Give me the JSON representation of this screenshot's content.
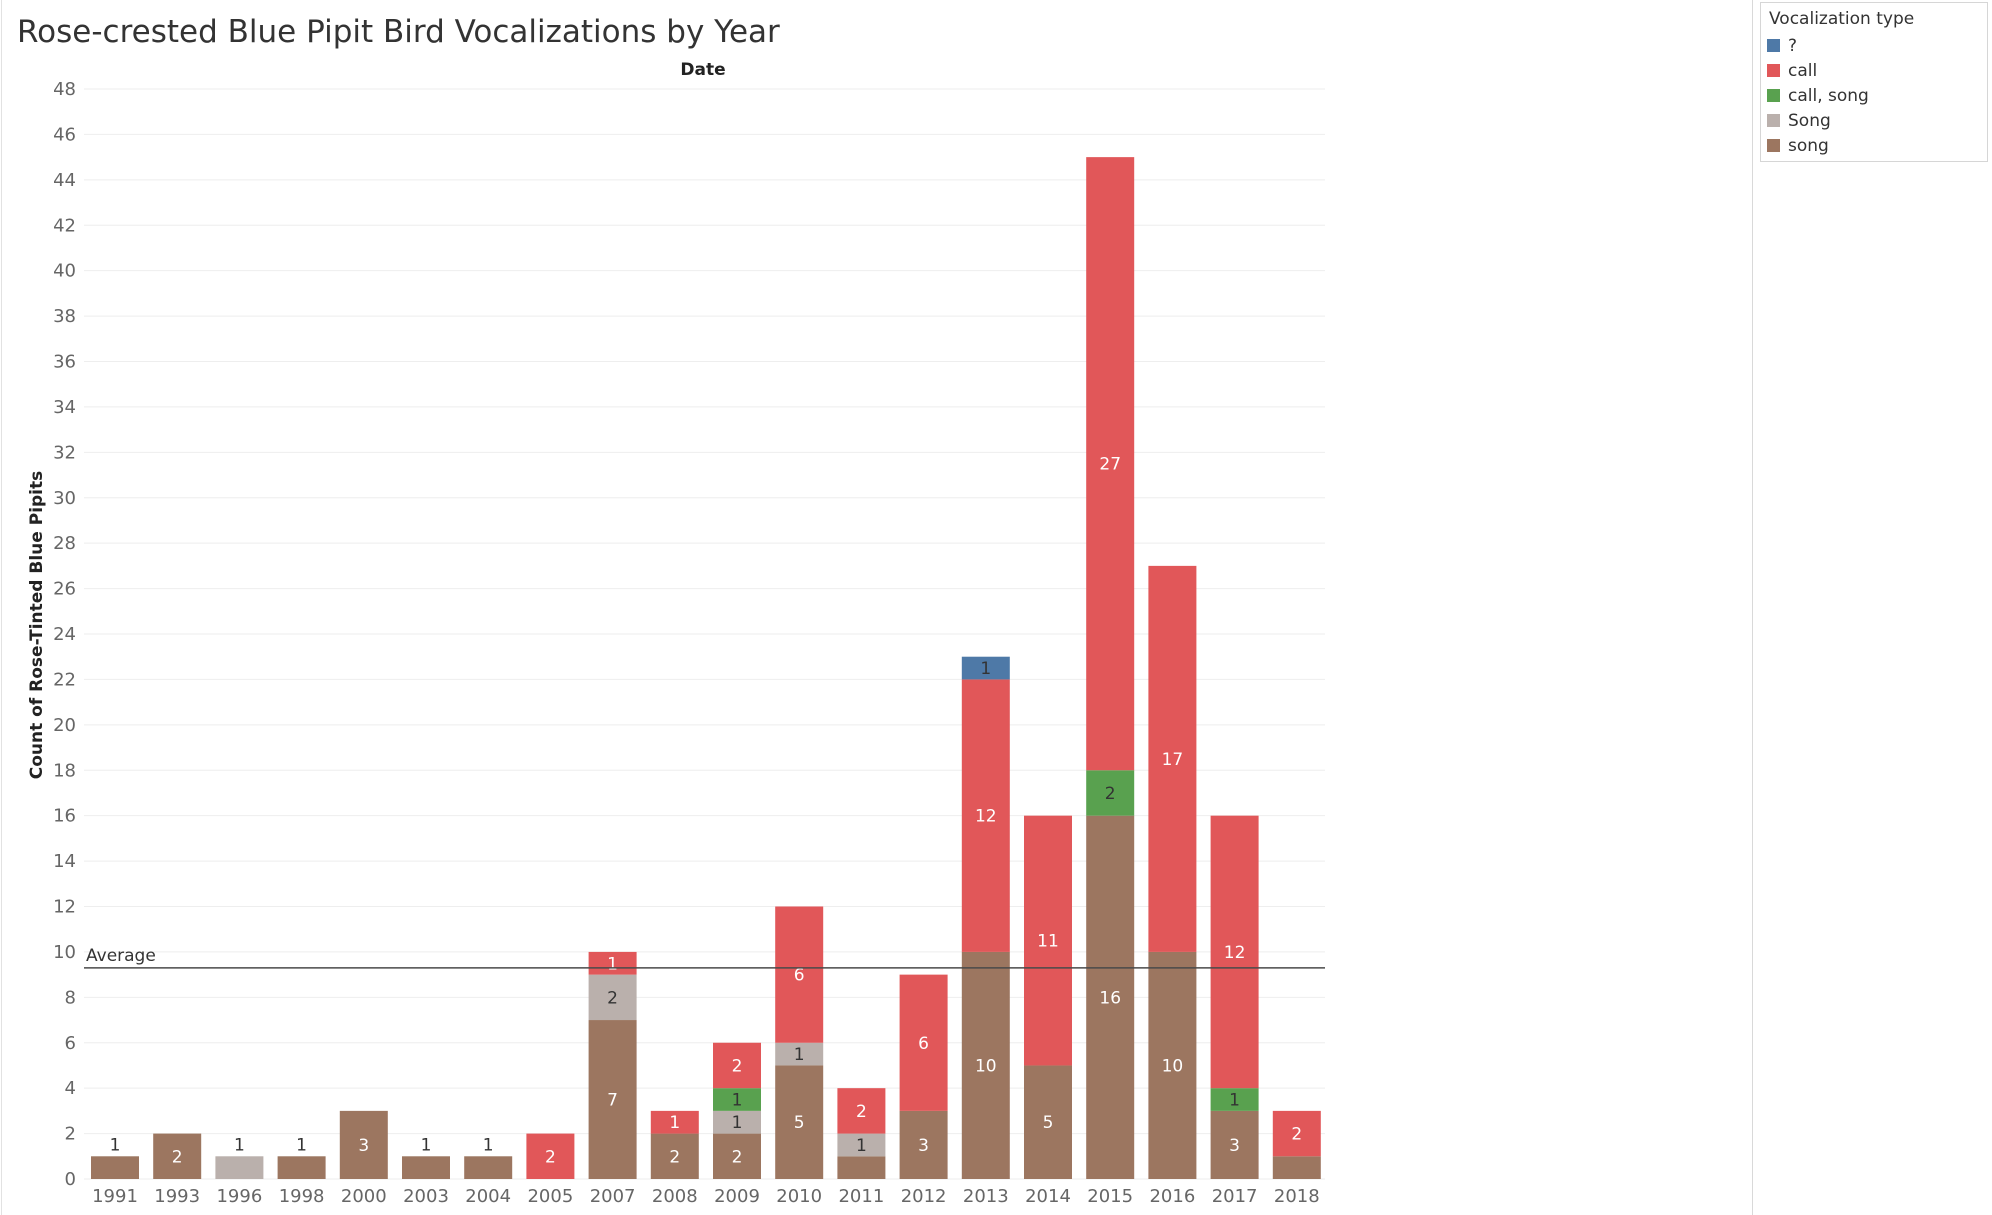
{
  "chart_data": {
    "type": "bar",
    "stacked": true,
    "title": "Rose-crested Blue Pipit Bird Vocalizations by Year",
    "column_header": "Date",
    "xlabel": "Date",
    "ylabel": "Count of Rose-Tinted Blue Pipits",
    "ylim": [
      0,
      48
    ],
    "yticks": [
      0,
      2,
      4,
      6,
      8,
      10,
      12,
      14,
      16,
      18,
      20,
      22,
      24,
      26,
      28,
      30,
      32,
      34,
      36,
      38,
      40,
      42,
      44,
      46,
      48
    ],
    "categories": [
      "1991",
      "1993",
      "1996",
      "1998",
      "2000",
      "2003",
      "2004",
      "2005",
      "2007",
      "2008",
      "2009",
      "2010",
      "2011",
      "2012",
      "2013",
      "2014",
      "2015",
      "2016",
      "2017",
      "2018"
    ],
    "series": [
      {
        "name": "song",
        "color": "#9c7660",
        "values": [
          1,
          2,
          0,
          1,
          3,
          1,
          1,
          0,
          7,
          2,
          2,
          5,
          1,
          3,
          10,
          5,
          16,
          10,
          3,
          1
        ]
      },
      {
        "name": "Song",
        "color": "#bab0ac",
        "values": [
          0,
          0,
          1,
          0,
          0,
          0,
          0,
          0,
          2,
          0,
          1,
          1,
          1,
          0,
          0,
          0,
          0,
          0,
          0,
          0
        ]
      },
      {
        "name": "call, song",
        "color": "#59a14f",
        "values": [
          0,
          0,
          0,
          0,
          0,
          0,
          0,
          0,
          0,
          0,
          1,
          0,
          0,
          0,
          0,
          0,
          2,
          0,
          1,
          0
        ]
      },
      {
        "name": "call",
        "color": "#e15759",
        "values": [
          0,
          0,
          0,
          0,
          0,
          0,
          0,
          2,
          1,
          1,
          2,
          6,
          2,
          6,
          12,
          11,
          27,
          17,
          12,
          2
        ]
      },
      {
        "name": "?",
        "color": "#4e79a7",
        "values": [
          0,
          0,
          0,
          0,
          0,
          0,
          0,
          0,
          0,
          0,
          0,
          0,
          0,
          0,
          1,
          0,
          0,
          0,
          0,
          0
        ]
      }
    ],
    "reference_line": {
      "label": "Average",
      "value": 9.3
    },
    "grid": true,
    "legend": {
      "title": "Vocalization type",
      "position": "top-right",
      "items": [
        {
          "label": "?",
          "color": "#4e79a7"
        },
        {
          "label": "call",
          "color": "#e15759"
        },
        {
          "label": "call, song",
          "color": "#59a14f"
        },
        {
          "label": "Song",
          "color": "#bab0ac"
        },
        {
          "label": "song",
          "color": "#9c7660"
        }
      ]
    }
  }
}
